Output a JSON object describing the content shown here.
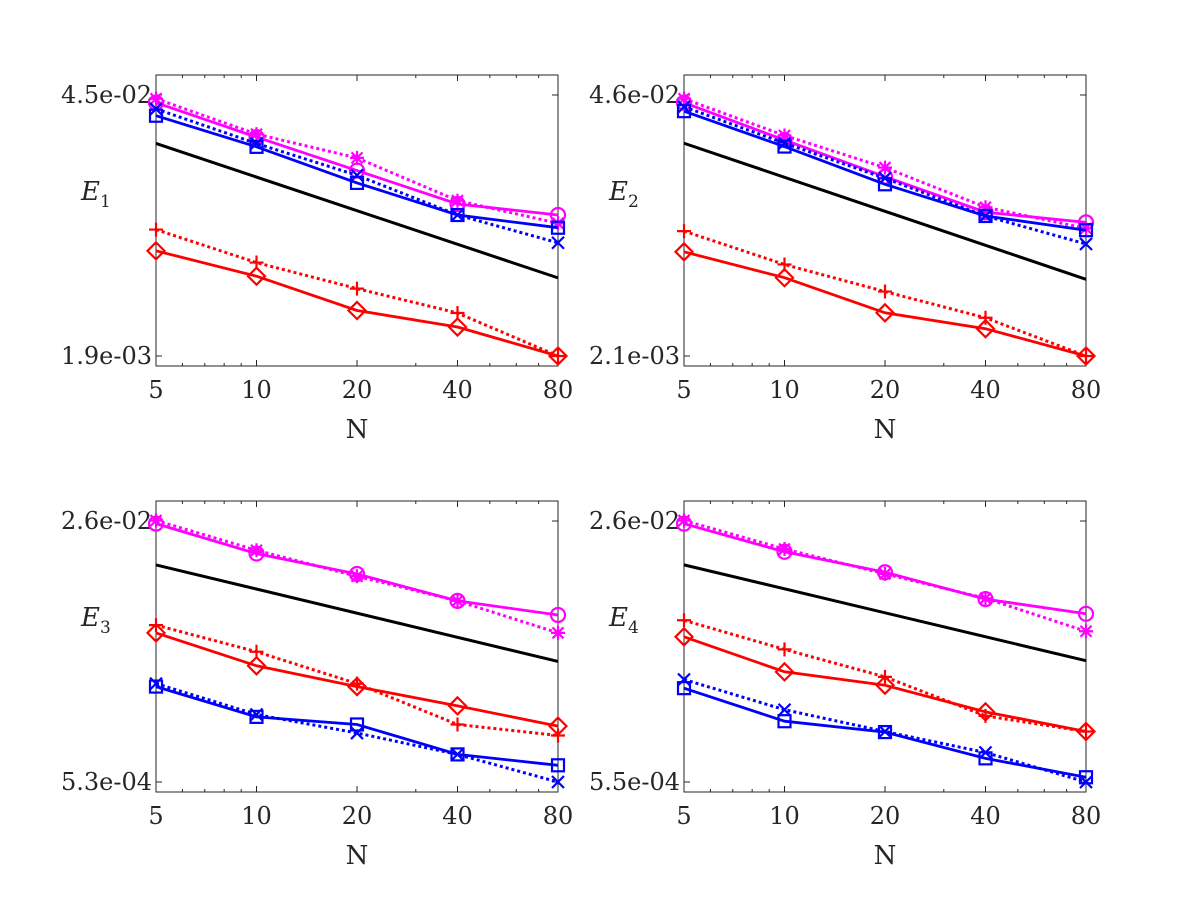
{
  "chart_data": [
    {
      "type": "line",
      "yscale": "log",
      "xscale": "log",
      "xlabel": "N",
      "ylabel_main": "E",
      "ylabel_sub": "1",
      "x": [
        5,
        10,
        20,
        40,
        80
      ],
      "xticks": [
        5,
        10,
        20,
        40,
        80
      ],
      "ylim": [
        0.0019,
        0.045
      ],
      "ytick_labels": [
        "4.5e-02",
        "1.9e-03"
      ],
      "ref_line": [
        0.025,
        0.0049
      ],
      "series": [
        {
          "color": "#ff00ff",
          "marker": "circle",
          "dash": false,
          "values": [
            0.041,
            0.027,
            0.018,
            0.012,
            0.0105
          ]
        },
        {
          "color": "#ff00ff",
          "marker": "asterisk",
          "dash": true,
          "values": [
            0.043,
            0.028,
            0.021,
            0.0125,
            0.0095
          ]
        },
        {
          "color": "#0000ff",
          "marker": "square",
          "dash": false,
          "values": [
            0.035,
            0.024,
            0.0155,
            0.0105,
            0.009
          ]
        },
        {
          "color": "#0000ff",
          "marker": "x",
          "dash": true,
          "values": [
            0.038,
            0.025,
            0.017,
            0.0105,
            0.0075
          ]
        },
        {
          "color": "#ff0000",
          "marker": "plus",
          "dash": true,
          "values": [
            0.0088,
            0.0059,
            0.0043,
            0.0032,
            0.0019
          ]
        },
        {
          "color": "#ff0000",
          "marker": "diamond",
          "dash": false,
          "values": [
            0.0068,
            0.005,
            0.0033,
            0.0027,
            0.0019
          ]
        }
      ]
    },
    {
      "type": "line",
      "yscale": "log",
      "xscale": "log",
      "xlabel": "N",
      "ylabel_main": "E",
      "ylabel_sub": "2",
      "x": [
        5,
        10,
        20,
        40,
        80
      ],
      "xticks": [
        5,
        10,
        20,
        40,
        80
      ],
      "ylim": [
        0.0021,
        0.046
      ],
      "ytick_labels": [
        "4.6e-02",
        "2.1e-03"
      ],
      "ref_line": [
        0.026,
        0.0052
      ],
      "series": [
        {
          "color": "#ff00ff",
          "marker": "circle",
          "dash": false,
          "values": [
            0.042,
            0.027,
            0.0175,
            0.0115,
            0.0102
          ]
        },
        {
          "color": "#ff00ff",
          "marker": "asterisk",
          "dash": true,
          "values": [
            0.044,
            0.0285,
            0.0195,
            0.0122,
            0.0095
          ]
        },
        {
          "color": "#0000ff",
          "marker": "square",
          "dash": false,
          "values": [
            0.038,
            0.025,
            0.016,
            0.011,
            0.0093
          ]
        },
        {
          "color": "#0000ff",
          "marker": "x",
          "dash": true,
          "values": [
            0.04,
            0.026,
            0.0172,
            0.011,
            0.0079
          ]
        },
        {
          "color": "#ff0000",
          "marker": "plus",
          "dash": true,
          "values": [
            0.0092,
            0.0062,
            0.0045,
            0.0033,
            0.0021
          ]
        },
        {
          "color": "#ff0000",
          "marker": "diamond",
          "dash": false,
          "values": [
            0.0072,
            0.0053,
            0.0035,
            0.0029,
            0.0021
          ]
        }
      ]
    },
    {
      "type": "line",
      "yscale": "log",
      "xscale": "log",
      "xlabel": "N",
      "ylabel_main": "E",
      "ylabel_sub": "3",
      "x": [
        5,
        10,
        20,
        40,
        80
      ],
      "xticks": [
        5,
        10,
        20,
        40,
        80
      ],
      "ylim": [
        0.00053,
        0.026
      ],
      "ytick_labels": [
        "2.6e-02",
        "5.3e-04"
      ],
      "ref_line": [
        0.0135,
        0.0032
      ],
      "series": [
        {
          "color": "#ff00ff",
          "marker": "circle",
          "dash": false,
          "values": [
            0.025,
            0.016,
            0.0118,
            0.0079,
            0.0064
          ]
        },
        {
          "color": "#ff00ff",
          "marker": "asterisk",
          "dash": true,
          "values": [
            0.0262,
            0.0168,
            0.0114,
            0.0079,
            0.0049
          ]
        },
        {
          "color": "#0000ff",
          "marker": "square",
          "dash": false,
          "values": [
            0.0022,
            0.0014,
            0.00125,
            0.0008,
            0.00068
          ]
        },
        {
          "color": "#0000ff",
          "marker": "x",
          "dash": true,
          "values": [
            0.0023,
            0.00145,
            0.0011,
            0.0008,
            0.00053
          ]
        },
        {
          "color": "#ff0000",
          "marker": "plus",
          "dash": true,
          "values": [
            0.0055,
            0.0037,
            0.0023,
            0.00125,
            0.00106
          ]
        },
        {
          "color": "#ff0000",
          "marker": "diamond",
          "dash": false,
          "values": [
            0.0049,
            0.003,
            0.0022,
            0.00165,
            0.00122
          ]
        }
      ]
    },
    {
      "type": "line",
      "yscale": "log",
      "xscale": "log",
      "xlabel": "N",
      "ylabel_main": "E",
      "ylabel_sub": "4",
      "x": [
        5,
        10,
        20,
        40,
        80
      ],
      "xticks": [
        5,
        10,
        20,
        40,
        80
      ],
      "ylim": [
        0.00055,
        0.026
      ],
      "ytick_labels": [
        "2.6e-02",
        "5.5e-04"
      ],
      "ref_line": [
        0.0136,
        0.0033
      ],
      "series": [
        {
          "color": "#ff00ff",
          "marker": "circle",
          "dash": false,
          "values": [
            0.025,
            0.0165,
            0.0122,
            0.0082,
            0.0066
          ]
        },
        {
          "color": "#ff00ff",
          "marker": "asterisk",
          "dash": true,
          "values": [
            0.0262,
            0.0172,
            0.0119,
            0.0083,
            0.0051
          ]
        },
        {
          "color": "#0000ff",
          "marker": "square",
          "dash": false,
          "values": [
            0.0022,
            0.00135,
            0.00115,
            0.00078,
            0.00059
          ]
        },
        {
          "color": "#0000ff",
          "marker": "x",
          "dash": true,
          "values": [
            0.0025,
            0.0016,
            0.00116,
            0.00085,
            0.00055
          ]
        },
        {
          "color": "#ff0000",
          "marker": "plus",
          "dash": true,
          "values": [
            0.006,
            0.0039,
            0.0026,
            0.00146,
            0.00116
          ]
        },
        {
          "color": "#ff0000",
          "marker": "diamond",
          "dash": false,
          "values": [
            0.0047,
            0.0028,
            0.0023,
            0.00155,
            0.00116
          ]
        }
      ]
    }
  ]
}
